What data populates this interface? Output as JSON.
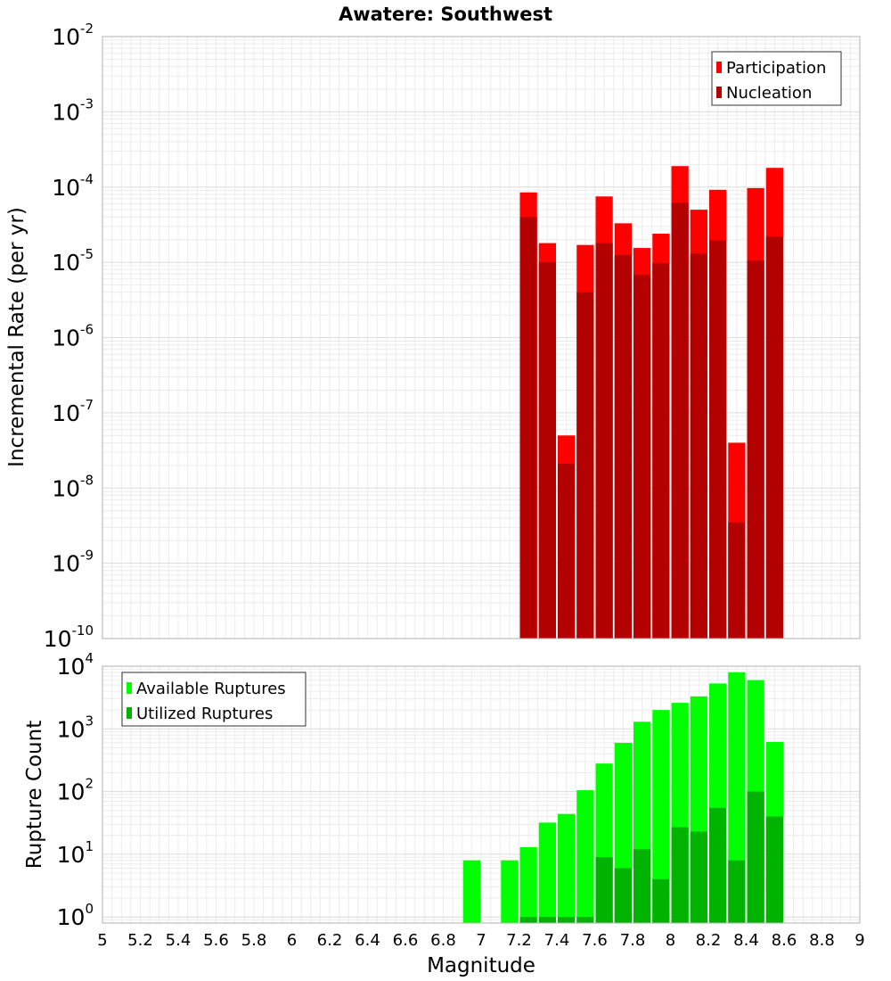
{
  "chart_data": [
    {
      "type": "bar",
      "title": "Awatere: Southwest",
      "xlabel": "",
      "ylabel": "Incremental Rate (per yr)",
      "xlim": [
        5,
        9
      ],
      "ylim": [
        1e-10,
        0.01
      ],
      "yscale": "log",
      "ytick_exponents": [
        -10,
        -9,
        -8,
        -7,
        -6,
        -5,
        -4,
        -3,
        -2
      ],
      "grid": true,
      "legend_position": "top-right",
      "bin_width": 0.1,
      "series": [
        {
          "name": "Participation",
          "color": "#ff0000",
          "x": [
            7.25,
            7.35,
            7.45,
            7.55,
            7.65,
            7.75,
            7.85,
            7.95,
            8.05,
            8.15,
            8.25,
            8.35,
            8.45,
            8.55
          ],
          "values": [
            8.5e-05,
            1.8e-05,
            5e-08,
            1.7e-05,
            7.5e-05,
            3.3e-05,
            1.55e-05,
            2.4e-05,
            0.00019,
            5e-05,
            9.2e-05,
            4e-08,
            9.7e-05,
            0.00018
          ]
        },
        {
          "name": "Nucleation",
          "color": "#b30000",
          "x": [
            7.25,
            7.35,
            7.45,
            7.55,
            7.65,
            7.75,
            7.85,
            7.95,
            8.05,
            8.15,
            8.25,
            8.35,
            8.45,
            8.55
          ],
          "values": [
            4e-05,
            1e-05,
            2.1e-08,
            4e-06,
            1.8e-05,
            1.25e-05,
            6.8e-06,
            9.8e-06,
            6.2e-05,
            1.3e-05,
            1.95e-05,
            3.5e-09,
            1.05e-05,
            2.2e-05
          ]
        }
      ]
    },
    {
      "type": "bar",
      "title": "",
      "xlabel": "Magnitude",
      "ylabel": "Rupture Count",
      "xlim": [
        5,
        9
      ],
      "xticks": [
        "5",
        "5.2",
        "5.4",
        "5.6",
        "5.8",
        "6",
        "6.2",
        "6.4",
        "6.6",
        "6.8",
        "7",
        "7.2",
        "7.4",
        "7.6",
        "7.8",
        "8",
        "8.2",
        "8.4",
        "8.6",
        "8.8",
        "9"
      ],
      "ylim": [
        0.8,
        10000
      ],
      "yscale": "log",
      "ytick_exponents": [
        0,
        1,
        2,
        3,
        4
      ],
      "grid": true,
      "legend_position": "top-left",
      "bin_width": 0.1,
      "series": [
        {
          "name": "Available Ruptures",
          "color": "#00ff00",
          "x": [
            6.95,
            7.15,
            7.25,
            7.35,
            7.45,
            7.55,
            7.65,
            7.75,
            7.85,
            7.95,
            8.05,
            8.15,
            8.25,
            8.35,
            8.45,
            8.55
          ],
          "values": [
            8,
            8,
            13,
            32,
            44,
            105,
            280,
            600,
            1300,
            2000,
            2600,
            3300,
            5300,
            8000,
            6000,
            620
          ]
        },
        {
          "name": "Utilized Ruptures",
          "color": "#00b300",
          "x": [
            7.25,
            7.35,
            7.45,
            7.55,
            7.65,
            7.75,
            7.85,
            7.95,
            8.05,
            8.15,
            8.25,
            8.35,
            8.45,
            8.55
          ],
          "values": [
            1,
            1,
            1,
            1,
            9,
            6,
            12,
            4,
            27,
            23,
            55,
            8,
            100,
            40
          ]
        }
      ]
    }
  ]
}
